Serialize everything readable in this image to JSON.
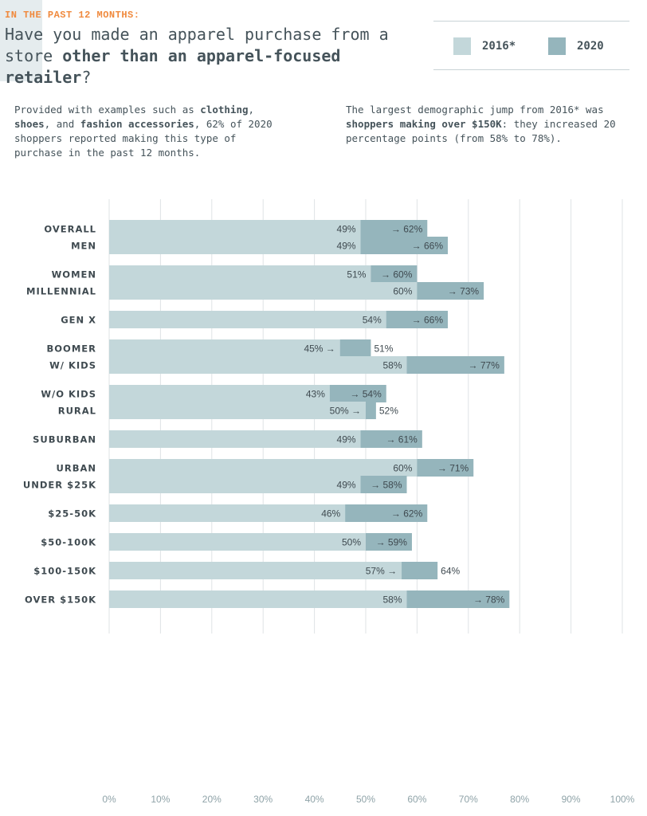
{
  "header": {
    "eyebrow": "IN THE PAST 12 MONTHS:",
    "title_part1": "Have you made an apparel purchase from a store ",
    "title_bold": "other than an apparel-focused retailer",
    "title_part2": "?"
  },
  "notes": {
    "left": {
      "t1": "Provided with examples such as ",
      "b1": "clothing",
      "t2": ", ",
      "b2": "shoes",
      "t3": ", and ",
      "b3": "fashion accessories",
      "t4": ", 62% of 2020 shoppers reported making this type of purchase in the past 12 months."
    },
    "right": {
      "t1": "The largest demographic jump from 2016* was ",
      "b1": "shoppers making over $150K",
      "t2": ": they increased 20 percentage points (from 58% to 78%)."
    }
  },
  "colors": {
    "series_2016": "#c3d7da",
    "series_2020": "#95b5bc",
    "grid": "#dfe3e5",
    "axis_text": "#8fa3a8",
    "label_text": "#3f4a50"
  },
  "chart_data": {
    "type": "bar",
    "orientation": "horizontal",
    "categories": [
      "OVERALL",
      "MEN",
      "WOMEN",
      "MILLENNIAL",
      "GEN X",
      "BOOMER",
      "W/ KIDS",
      "W/O KIDS",
      "RURAL",
      "SUBURBAN",
      "URBAN",
      "UNDER $25K",
      "$25-50K",
      "$50-100K",
      "$100-150K",
      "OVER $150K"
    ],
    "groups": [
      [
        "OVERALL"
      ],
      [
        "MEN",
        "WOMEN"
      ],
      [
        "MILLENNIAL",
        "GEN X",
        "BOOMER"
      ],
      [
        "W/ KIDS",
        "W/O KIDS"
      ],
      [
        "RURAL",
        "SUBURBAN",
        "URBAN"
      ],
      [
        "UNDER $25K",
        "$25-50K",
        "$50-100K",
        "$100-150K",
        "OVER $150K"
      ]
    ],
    "series": [
      {
        "name": "2016*",
        "values": [
          49,
          49,
          51,
          60,
          54,
          45,
          58,
          43,
          50,
          49,
          60,
          49,
          46,
          50,
          57,
          58
        ]
      },
      {
        "name": "2020",
        "values": [
          62,
          66,
          60,
          73,
          66,
          51,
          77,
          54,
          52,
          61,
          71,
          58,
          62,
          59,
          64,
          78
        ]
      }
    ],
    "labels_2016": [
      "49%",
      "49%",
      "51%",
      "60%",
      "54%",
      "45% →",
      "58%",
      "43%",
      "50% →",
      "49%",
      "60%",
      "49%",
      "46%",
      "50%",
      "57% →",
      "58%"
    ],
    "labels_2020": [
      "→ 62%",
      "→ 66%",
      "→ 60%",
      "→ 73%",
      "→ 66%",
      "51%",
      "→ 77%",
      "→ 54%",
      "52%",
      "→ 61%",
      "→ 71%",
      "→ 58%",
      "→ 62%",
      "→ 59%",
      "64%",
      "→ 78%"
    ],
    "xlim": [
      0,
      100
    ],
    "xticks": [
      "0%",
      "10%",
      "20%",
      "30%",
      "40%",
      "50%",
      "60%",
      "70%",
      "80%",
      "90%",
      "100%"
    ],
    "legend_position": "top-right",
    "grid": true
  }
}
